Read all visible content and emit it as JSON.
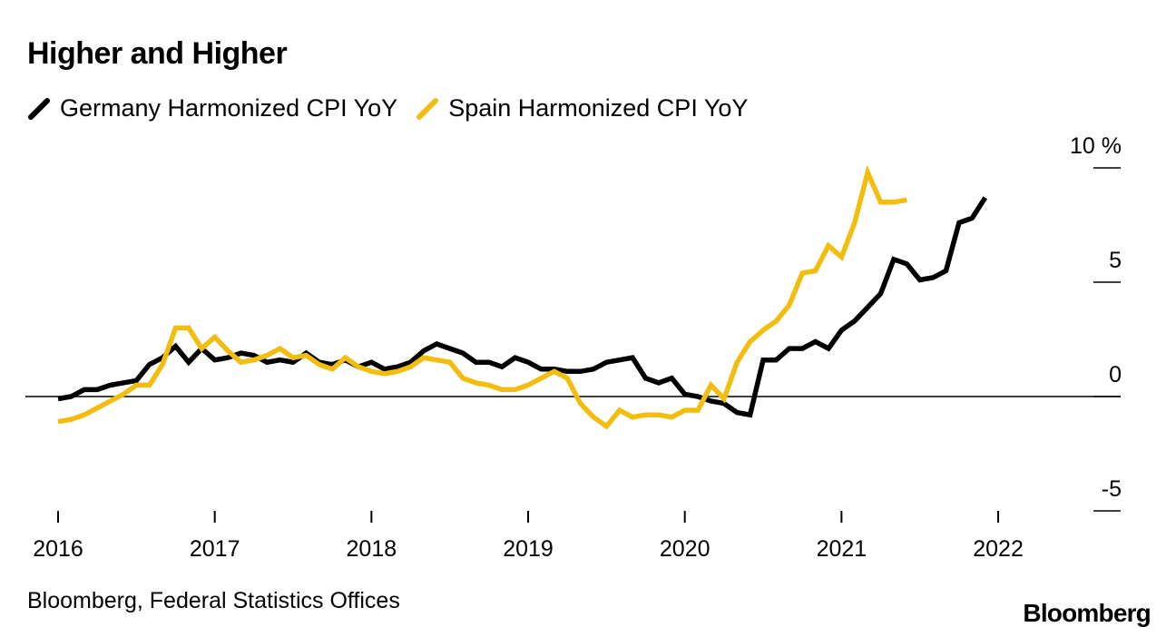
{
  "title": "Higher and Higher",
  "source": "Bloomberg, Federal Statistics Offices",
  "brand": "Bloomberg",
  "chart_data": {
    "type": "line",
    "title": "Higher and Higher",
    "xlabel": "",
    "ylabel": "",
    "y_unit": "%",
    "ylim": [
      -5,
      10
    ],
    "yticks": [
      10,
      5,
      0,
      -5
    ],
    "ytick_labels": [
      "10 %",
      "5",
      "0",
      "-5"
    ],
    "xlim": [
      "2016-01",
      "2022-06"
    ],
    "xticks": [
      "2016",
      "2017",
      "2018",
      "2019",
      "2020",
      "2021",
      "2022"
    ],
    "zero_line": true,
    "grid": false,
    "legend_position": "top-left",
    "series": [
      {
        "name": "Germany Harmonized CPI YoY",
        "color": "#000000",
        "points": [
          [
            "2016-01",
            -0.1
          ],
          [
            "2016-02",
            0.0
          ],
          [
            "2016-03",
            0.3
          ],
          [
            "2016-04",
            0.3
          ],
          [
            "2016-05",
            0.5
          ],
          [
            "2016-06",
            0.6
          ],
          [
            "2016-07",
            0.7
          ],
          [
            "2016-08",
            1.4
          ],
          [
            "2016-09",
            1.7
          ],
          [
            "2016-10",
            2.2
          ],
          [
            "2016-11",
            1.5
          ],
          [
            "2016-12",
            2.1
          ],
          [
            "2017-01",
            1.6
          ],
          [
            "2017-02",
            1.7
          ],
          [
            "2017-03",
            1.9
          ],
          [
            "2017-04",
            1.8
          ],
          [
            "2017-05",
            1.5
          ],
          [
            "2017-06",
            1.6
          ],
          [
            "2017-07",
            1.5
          ],
          [
            "2017-08",
            1.9
          ],
          [
            "2017-09",
            1.5
          ],
          [
            "2017-10",
            1.4
          ],
          [
            "2017-11",
            1.6
          ],
          [
            "2017-12",
            1.3
          ],
          [
            "2018-01",
            1.5
          ],
          [
            "2018-02",
            1.2
          ],
          [
            "2018-03",
            1.3
          ],
          [
            "2018-04",
            1.5
          ],
          [
            "2018-05",
            2.0
          ],
          [
            "2018-06",
            2.3
          ],
          [
            "2018-07",
            2.1
          ],
          [
            "2018-08",
            1.9
          ],
          [
            "2018-09",
            1.5
          ],
          [
            "2018-10",
            1.5
          ],
          [
            "2018-11",
            1.3
          ],
          [
            "2018-12",
            1.7
          ],
          [
            "2019-01",
            1.5
          ],
          [
            "2019-02",
            1.2
          ],
          [
            "2019-03",
            1.2
          ],
          [
            "2019-04",
            1.1
          ],
          [
            "2019-05",
            1.1
          ],
          [
            "2019-06",
            1.2
          ],
          [
            "2019-07",
            1.5
          ],
          [
            "2019-08",
            1.6
          ],
          [
            "2019-09",
            1.7
          ],
          [
            "2019-10",
            0.8
          ],
          [
            "2019-11",
            0.6
          ],
          [
            "2019-12",
            0.8
          ],
          [
            "2020-01",
            0.1
          ],
          [
            "2020-02",
            0.0
          ],
          [
            "2020-03",
            -0.2
          ],
          [
            "2020-04",
            -0.3
          ],
          [
            "2020-05",
            -0.7
          ],
          [
            "2020-06",
            -0.8
          ],
          [
            "2020-07",
            1.6
          ],
          [
            "2020-08",
            1.6
          ],
          [
            "2020-09",
            2.1
          ],
          [
            "2020-10",
            2.1
          ],
          [
            "2020-11",
            2.4
          ],
          [
            "2020-12",
            2.1
          ],
          [
            "2021-01",
            2.9
          ],
          [
            "2021-02",
            3.3
          ],
          [
            "2021-03",
            3.9
          ],
          [
            "2021-04",
            4.5
          ],
          [
            "2021-05",
            6.0
          ],
          [
            "2021-06",
            5.8
          ],
          [
            "2021-07",
            5.1
          ],
          [
            "2021-08",
            5.2
          ],
          [
            "2021-09",
            5.5
          ],
          [
            "2021-10",
            7.6
          ],
          [
            "2021-11",
            7.8
          ],
          [
            "2021-12",
            8.7
          ]
        ]
      },
      {
        "name": "Spain Harmonized CPI YoY",
        "color": "#f2bd0f",
        "points": [
          [
            "2016-01",
            -1.1
          ],
          [
            "2016-02",
            -1.0
          ],
          [
            "2016-03",
            -0.8
          ],
          [
            "2016-04",
            -0.5
          ],
          [
            "2016-05",
            -0.2
          ],
          [
            "2016-06",
            0.1
          ],
          [
            "2016-07",
            0.5
          ],
          [
            "2016-08",
            0.5
          ],
          [
            "2016-09",
            1.4
          ],
          [
            "2016-10",
            3.0
          ],
          [
            "2016-11",
            3.0
          ],
          [
            "2016-12",
            2.1
          ],
          [
            "2017-01",
            2.6
          ],
          [
            "2017-02",
            2.0
          ],
          [
            "2017-03",
            1.5
          ],
          [
            "2017-04",
            1.6
          ],
          [
            "2017-05",
            1.8
          ],
          [
            "2017-06",
            2.1
          ],
          [
            "2017-07",
            1.7
          ],
          [
            "2017-08",
            1.8
          ],
          [
            "2017-09",
            1.4
          ],
          [
            "2017-10",
            1.2
          ],
          [
            "2017-11",
            1.7
          ],
          [
            "2017-12",
            1.3
          ],
          [
            "2018-01",
            1.1
          ],
          [
            "2018-02",
            1.0
          ],
          [
            "2018-03",
            1.1
          ],
          [
            "2018-04",
            1.3
          ],
          [
            "2018-05",
            1.7
          ],
          [
            "2018-06",
            1.6
          ],
          [
            "2018-07",
            1.5
          ],
          [
            "2018-08",
            0.8
          ],
          [
            "2018-09",
            0.6
          ],
          [
            "2018-10",
            0.5
          ],
          [
            "2018-11",
            0.3
          ],
          [
            "2018-12",
            0.3
          ],
          [
            "2019-01",
            0.5
          ],
          [
            "2019-02",
            0.8
          ],
          [
            "2019-03",
            1.1
          ],
          [
            "2019-04",
            0.8
          ],
          [
            "2019-05",
            -0.3
          ],
          [
            "2019-06",
            -0.9
          ],
          [
            "2019-07",
            -1.3
          ],
          [
            "2019-08",
            -0.6
          ],
          [
            "2019-09",
            -0.9
          ],
          [
            "2019-10",
            -0.8
          ],
          [
            "2019-11",
            -0.8
          ],
          [
            "2019-12",
            -0.9
          ],
          [
            "2020-01",
            -0.6
          ],
          [
            "2020-02",
            -0.6
          ],
          [
            "2020-03",
            0.5
          ],
          [
            "2020-04",
            -0.1
          ],
          [
            "2020-05",
            1.5
          ],
          [
            "2020-06",
            2.4
          ],
          [
            "2020-07",
            2.9
          ],
          [
            "2020-08",
            3.3
          ],
          [
            "2020-09",
            4.0
          ],
          [
            "2020-10",
            5.4
          ],
          [
            "2020-11",
            5.5
          ],
          [
            "2020-12",
            6.6
          ],
          [
            "2021-01",
            6.1
          ],
          [
            "2021-02",
            7.6
          ],
          [
            "2021-03",
            9.8
          ],
          [
            "2021-04",
            8.5
          ],
          [
            "2021-05",
            8.5
          ],
          [
            "2021-06",
            8.6
          ]
        ]
      }
    ]
  }
}
